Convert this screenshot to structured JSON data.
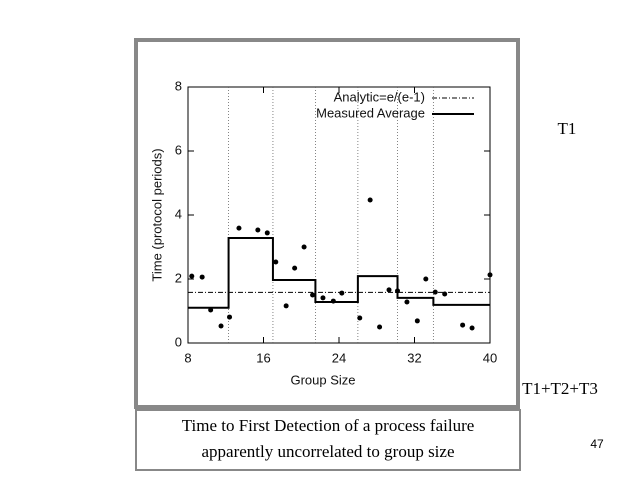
{
  "chart_data": {
    "type": "line",
    "x_label": "Group Size",
    "y_label": "Time (protocol periods)",
    "xlim": [
      8,
      40
    ],
    "ylim": [
      0,
      8
    ],
    "xticks": [
      8,
      16,
      24,
      32,
      40
    ],
    "yticks": [
      0,
      2,
      4,
      6,
      8
    ],
    "vlines": [
      12.3,
      17,
      21.5,
      26,
      30.2,
      34
    ],
    "series": [
      {
        "name": "Analytic=e/(e-1)",
        "color": "#000000",
        "style": "dashdot",
        "x": [
          8,
          40
        ],
        "values": [
          1.582,
          1.582
        ]
      },
      {
        "name": "Measured Average",
        "color": "#000000",
        "style": "solid",
        "x": [
          8,
          12.3,
          12.3,
          17,
          17,
          21.5,
          21.5,
          26,
          26,
          30.2,
          30.2,
          34,
          34,
          40
        ],
        "values": [
          1.1,
          1.1,
          3.28,
          3.28,
          1.97,
          1.97,
          1.28,
          1.28,
          2.09,
          2.09,
          1.41,
          1.41,
          1.19,
          1.19
        ]
      }
    ],
    "points": {
      "color": "#000000",
      "x": [
        8.4,
        9.5,
        10.4,
        11.5,
        12.4,
        13.4,
        15.4,
        16.4,
        17.3,
        18.4,
        19.3,
        20.3,
        21.2,
        22.3,
        23.4,
        24.3,
        26.2,
        27.3,
        28.3,
        29.3,
        30.2,
        31.2,
        32.3,
        33.2,
        34.2,
        35.2,
        37.1,
        38.1,
        40
      ],
      "values": [
        2.09,
        2.06,
        1.03,
        0.53,
        0.81,
        3.59,
        3.53,
        3.44,
        2.53,
        1.16,
        2.34,
        3.0,
        1.5,
        1.41,
        1.31,
        1.56,
        0.78,
        4.47,
        0.5,
        1.66,
        1.63,
        1.28,
        0.69,
        2.0,
        1.59,
        1.53,
        0.56,
        0.47,
        2.13
      ]
    }
  },
  "slide": {
    "label_top": "T1",
    "label_bottom": "T1+T2+T3",
    "caption": [
      "Time to First Detection of a process failure",
      "apparently uncorrelated to group size"
    ],
    "page_number": "47"
  }
}
